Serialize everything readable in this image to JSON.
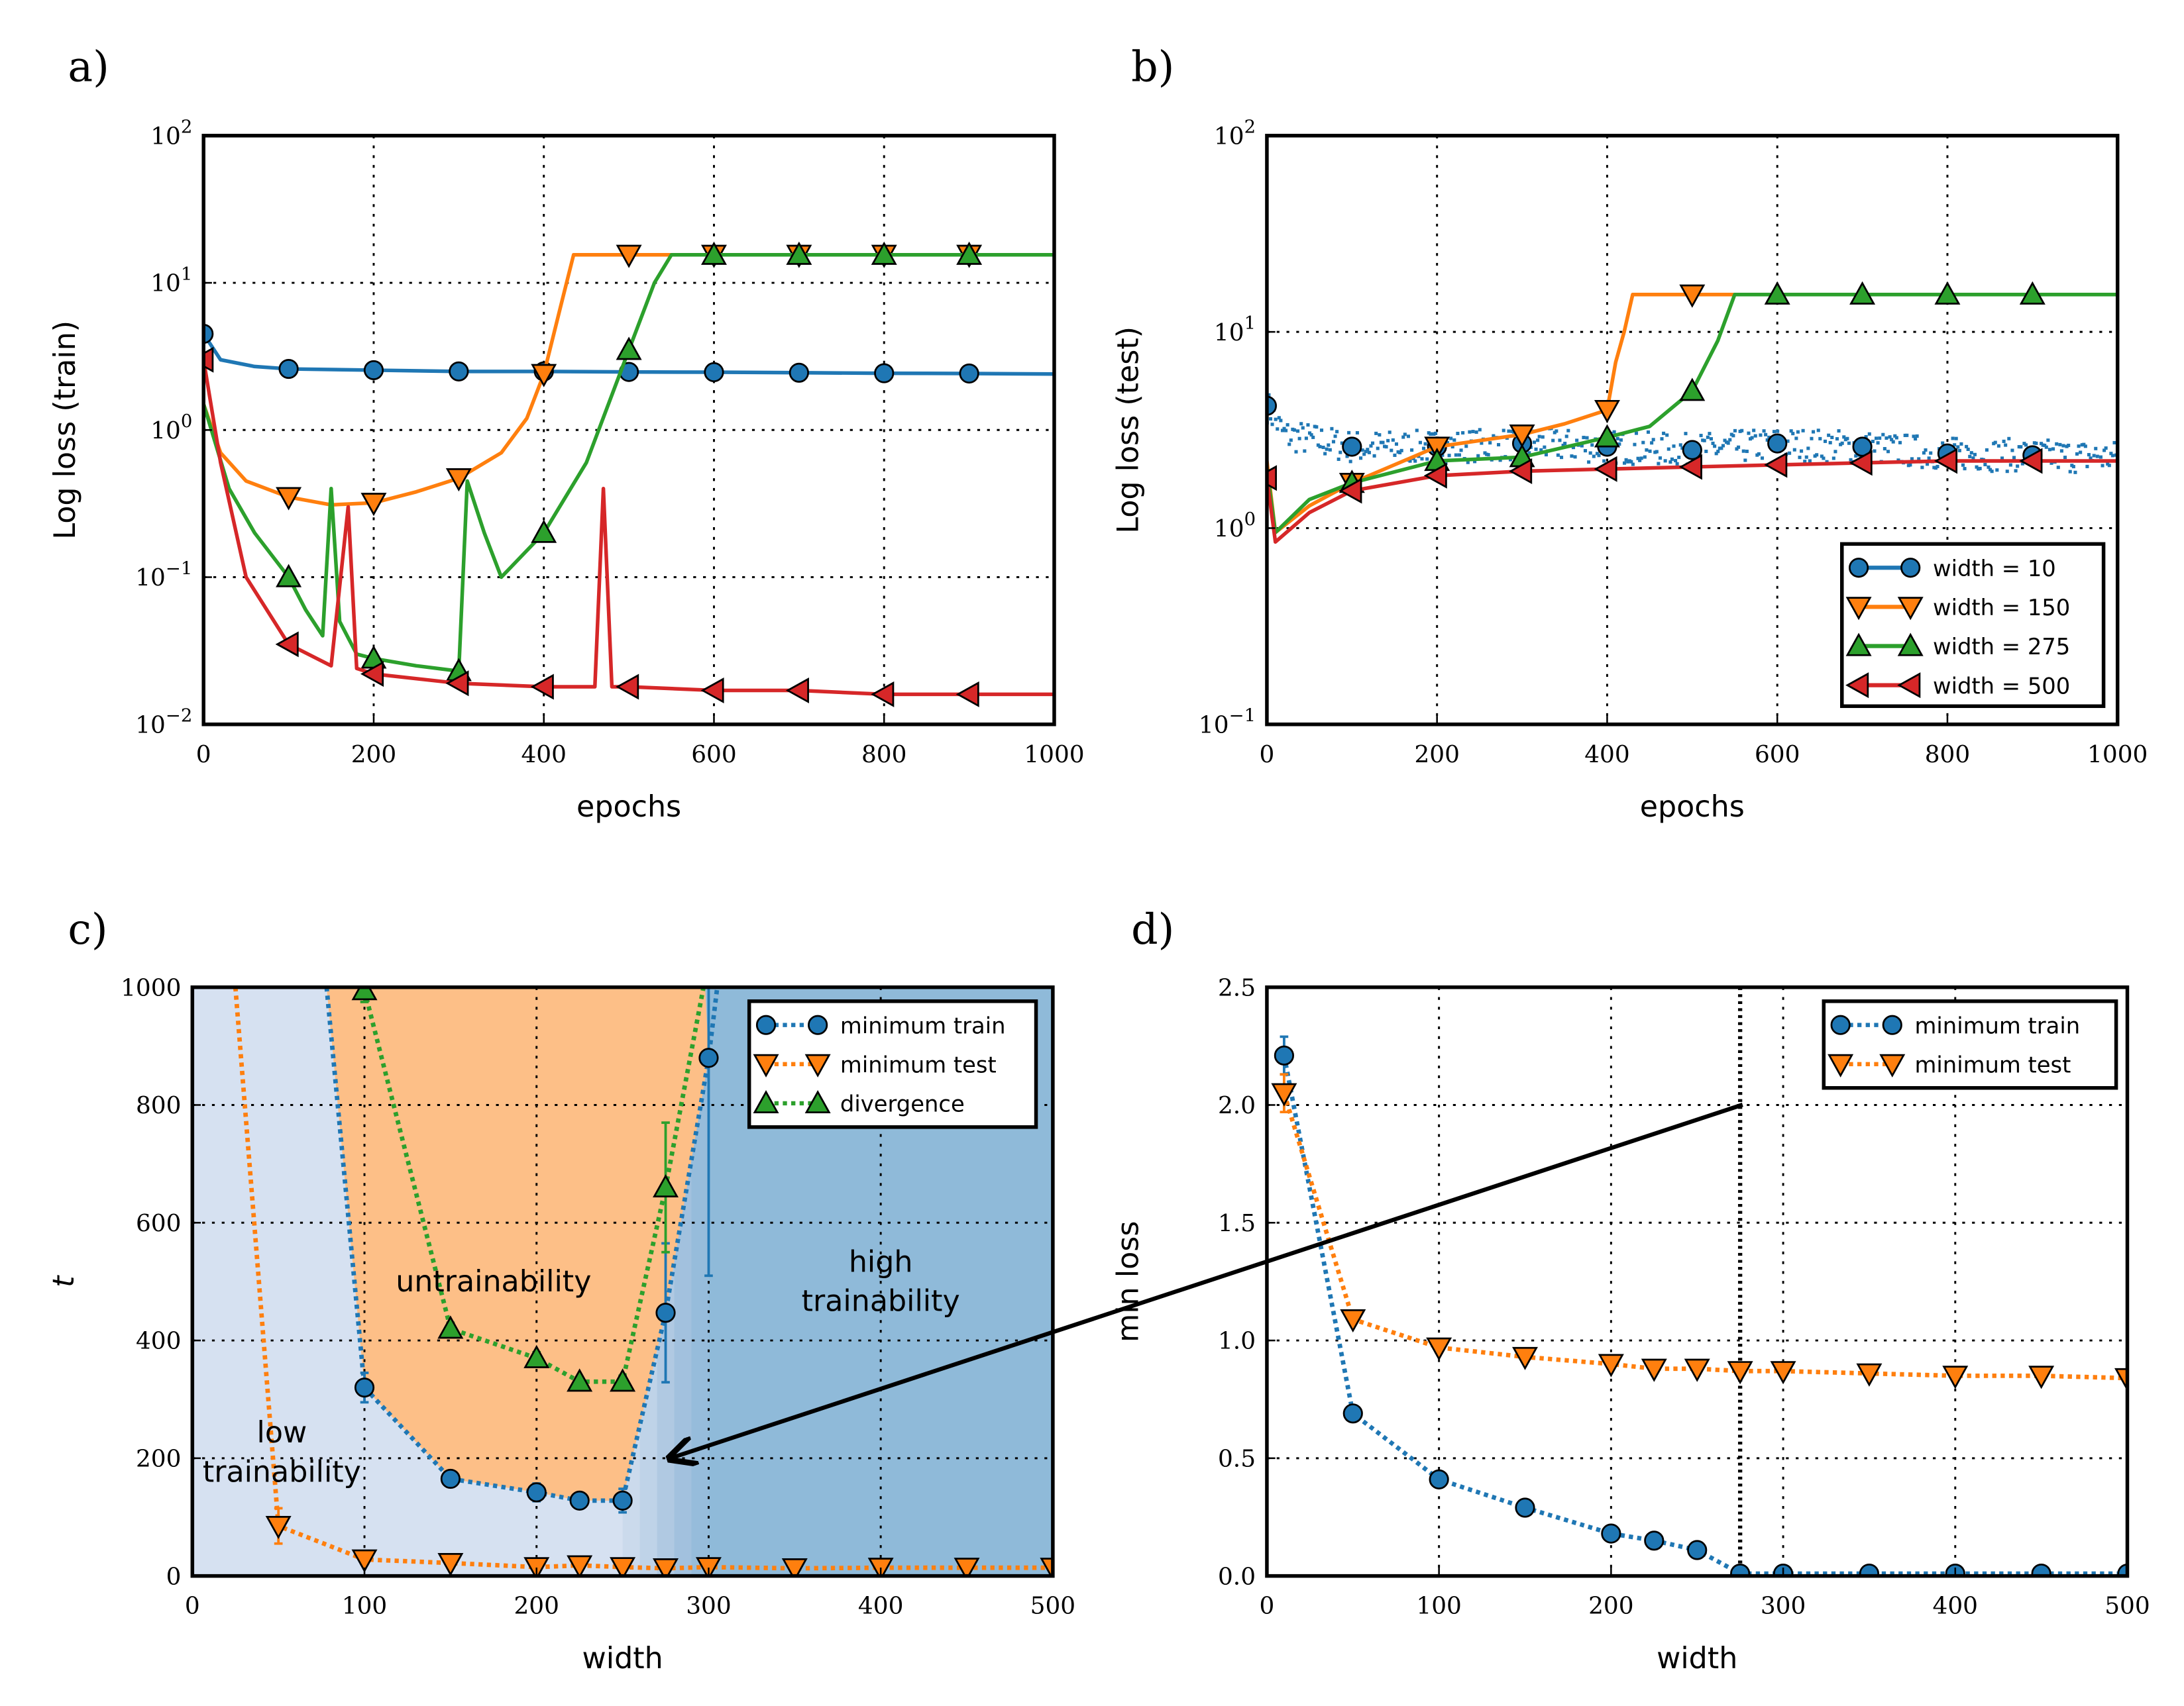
{
  "colors": {
    "blue": "#1f77b4",
    "orange": "#ff7f0e",
    "green": "#2ca02c",
    "red": "#d62728",
    "region_low": "#d6e1f1",
    "region_untrainable": "#fdbf87",
    "region_high": "#8fbad9"
  },
  "chart_data": [
    {
      "panel": "a)",
      "type": "line",
      "xlabel": "epochs",
      "ylabel": "Log loss (train)",
      "xlim": [
        0,
        1000
      ],
      "ylim": [
        0.01,
        100
      ],
      "yscale": "log",
      "grid": true,
      "xticks": [
        0,
        200,
        400,
        600,
        800,
        1000
      ],
      "xticklabels": [
        "0",
        "200",
        "400",
        "600",
        "800",
        "1000"
      ],
      "yticks": [
        0.01,
        0.1,
        1,
        10,
        100
      ],
      "yticklabels": [
        "10^−2",
        "10^−1",
        "10^0",
        "10^1",
        "10^2"
      ],
      "series": [
        {
          "name": "width = 10",
          "color": "#1f77b4",
          "marker": "o",
          "x": [
            0,
            20,
            60,
            100,
            200,
            300,
            400,
            500,
            600,
            700,
            800,
            900,
            1000
          ],
          "y": [
            4.5,
            3.0,
            2.7,
            2.6,
            2.55,
            2.5,
            2.5,
            2.48,
            2.47,
            2.45,
            2.43,
            2.42,
            2.4
          ]
        },
        {
          "name": "width = 150",
          "color": "#ff7f0e",
          "marker": "v",
          "x": [
            0,
            20,
            50,
            100,
            150,
            200,
            250,
            300,
            350,
            380,
            400,
            420,
            435,
            500,
            600,
            700,
            800,
            900,
            1000
          ],
          "y": [
            1.5,
            0.7,
            0.45,
            0.35,
            0.31,
            0.32,
            0.38,
            0.47,
            0.7,
            1.2,
            2.4,
            7,
            15.5,
            15.5,
            15.5,
            15.5,
            15.5,
            15.5,
            15.5
          ]
        },
        {
          "name": "width = 275",
          "color": "#2ca02c",
          "marker": "^",
          "x": [
            0,
            30,
            60,
            100,
            120,
            140,
            150,
            160,
            180,
            200,
            250,
            300,
            310,
            330,
            350,
            400,
            450,
            500,
            530,
            550,
            600,
            700,
            800,
            900,
            1000
          ],
          "y": [
            1.5,
            0.4,
            0.2,
            0.1,
            0.06,
            0.04,
            0.4,
            0.05,
            0.03,
            0.028,
            0.025,
            0.023,
            0.45,
            0.2,
            0.1,
            0.2,
            0.6,
            3.5,
            10,
            15.5,
            15.5,
            15.5,
            15.5,
            15.5,
            15.5
          ]
        },
        {
          "name": "width = 500",
          "color": "#d62728",
          "marker": "<",
          "x": [
            0,
            20,
            50,
            100,
            150,
            170,
            180,
            200,
            300,
            400,
            460,
            470,
            480,
            500,
            600,
            700,
            800,
            900,
            1000
          ],
          "y": [
            3.0,
            0.6,
            0.1,
            0.035,
            0.025,
            0.3,
            0.024,
            0.022,
            0.019,
            0.018,
            0.018,
            0.4,
            0.018,
            0.018,
            0.017,
            0.017,
            0.016,
            0.016,
            0.016
          ]
        }
      ]
    },
    {
      "panel": "b)",
      "type": "line",
      "xlabel": "epochs",
      "ylabel": "Log loss (test)",
      "xlim": [
        0,
        1000
      ],
      "ylim": [
        0.1,
        100
      ],
      "yscale": "log",
      "grid": true,
      "legend": "lower-right",
      "xticks": [
        0,
        200,
        400,
        600,
        800,
        1000
      ],
      "xticklabels": [
        "0",
        "200",
        "400",
        "600",
        "800",
        "1000"
      ],
      "yticks": [
        0.1,
        1,
        10,
        100
      ],
      "yticklabels": [
        "10^−1",
        "10^0",
        "10^1",
        "10^2"
      ],
      "series": [
        {
          "name": "width = 10",
          "color": "#1f77b4",
          "marker": "o",
          "noisy": true,
          "x": [
            0,
            20,
            100,
            200,
            300,
            400,
            500,
            600,
            700,
            800,
            900,
            1000
          ],
          "y": [
            4.2,
            3.0,
            2.6,
            2.6,
            2.7,
            2.6,
            2.5,
            2.7,
            2.6,
            2.4,
            2.35,
            2.3
          ]
        },
        {
          "name": "width = 150",
          "color": "#ff7f0e",
          "marker": "v",
          "x": [
            0,
            10,
            50,
            100,
            200,
            300,
            350,
            400,
            410,
            420,
            430,
            500,
            550
          ],
          "y": [
            2.2,
            0.95,
            1.3,
            1.7,
            2.6,
            3.0,
            3.4,
            4.0,
            7,
            10,
            15.5,
            15.5,
            15.5
          ]
        },
        {
          "name": "width = 275",
          "color": "#2ca02c",
          "marker": "^",
          "x": [
            0,
            10,
            50,
            100,
            200,
            300,
            400,
            450,
            500,
            530,
            550,
            600,
            700,
            800,
            900,
            1000
          ],
          "y": [
            2.0,
            0.95,
            1.4,
            1.7,
            2.2,
            2.3,
            2.9,
            3.3,
            5.0,
            9,
            15.5,
            15.5,
            15.5,
            15.5,
            15.5,
            15.5
          ]
        },
        {
          "name": "width = 500",
          "color": "#d62728",
          "marker": "<",
          "x": [
            0,
            10,
            50,
            100,
            200,
            300,
            400,
            500,
            600,
            700,
            800,
            900,
            1000
          ],
          "y": [
            1.8,
            0.85,
            1.2,
            1.55,
            1.85,
            1.95,
            2.0,
            2.05,
            2.1,
            2.15,
            2.2,
            2.2,
            2.2
          ]
        }
      ]
    },
    {
      "panel": "c)",
      "type": "line",
      "xlabel": "width",
      "ylabel": "t",
      "xlim": [
        0,
        500
      ],
      "ylim": [
        0,
        1000
      ],
      "grid": true,
      "legend": "upper-right",
      "xticks": [
        0,
        100,
        200,
        300,
        400,
        500
      ],
      "xticklabels": [
        "0",
        "100",
        "200",
        "300",
        "400",
        "500"
      ],
      "yticks": [
        0,
        200,
        400,
        600,
        800,
        1000
      ],
      "yticklabels": [
        "0",
        "200",
        "400",
        "600",
        "800",
        "1000"
      ],
      "regions": [
        {
          "label_lines": [
            "low",
            "trainability"
          ],
          "x": 52,
          "y": 210
        },
        {
          "label_lines": [
            "untrainability"
          ],
          "x": 175,
          "y": 500
        },
        {
          "label_lines": [
            "high",
            "trainability"
          ],
          "x": 400,
          "y": 500
        }
      ],
      "series": [
        {
          "name": "minimum train",
          "color": "#1f77b4",
          "marker": "o",
          "x": [
            100,
            150,
            200,
            225,
            250,
            275,
            300
          ],
          "y": [
            320,
            165,
            142,
            128,
            128,
            447,
            880
          ],
          "yerr": [
            25,
            8,
            15,
            10,
            20,
            118,
            370
          ],
          "line_x": [
            78,
            100,
            150,
            200,
            225,
            250,
            275,
            300,
            305
          ],
          "line_y": [
            1000,
            320,
            165,
            142,
            128,
            128,
            447,
            880,
            1000
          ]
        },
        {
          "name": "minimum test",
          "color": "#ff7f0e",
          "marker": "v",
          "x": [
            50,
            100,
            150,
            200,
            225,
            250,
            275,
            300,
            350,
            400,
            450,
            500
          ],
          "y": [
            85,
            28,
            22,
            15,
            18,
            15,
            13,
            15,
            13,
            14,
            14,
            14
          ],
          "yerr": [
            30,
            8,
            5,
            4,
            4,
            4,
            3,
            3,
            3,
            3,
            3,
            3
          ],
          "line_x": [
            25,
            50,
            100,
            150,
            200,
            225,
            250,
            275,
            300,
            350,
            400,
            450,
            500
          ],
          "line_y": [
            1000,
            85,
            28,
            22,
            15,
            18,
            15,
            13,
            15,
            13,
            14,
            14,
            14
          ]
        },
        {
          "name": "divergence",
          "color": "#2ca02c",
          "marker": "^",
          "x": [
            100,
            150,
            200,
            225,
            250,
            275
          ],
          "y": [
            995,
            420,
            370,
            330,
            330,
            660
          ],
          "yerr": [
            20,
            10,
            10,
            8,
            10,
            110
          ],
          "line_x": [
            100,
            150,
            200,
            225,
            250,
            275,
            297
          ],
          "line_y": [
            995,
            420,
            370,
            330,
            330,
            660,
            1000
          ]
        }
      ]
    },
    {
      "panel": "d)",
      "type": "line",
      "xlabel": "width",
      "ylabel": "min loss",
      "xlim": [
        0,
        500
      ],
      "ylim": [
        0,
        2.5
      ],
      "grid": true,
      "legend": "upper-right",
      "vline": 275,
      "xticks": [
        0,
        100,
        200,
        300,
        400,
        500
      ],
      "xticklabels": [
        "0",
        "100",
        "200",
        "300",
        "400",
        "500"
      ],
      "yticks": [
        0,
        0.5,
        1,
        1.5,
        2,
        2.5
      ],
      "yticklabels": [
        "0.0",
        "0.5",
        "1.0",
        "1.5",
        "2.0",
        "2.5"
      ],
      "series": [
        {
          "name": "minimum train",
          "color": "#1f77b4",
          "marker": "o",
          "x": [
            10,
            50,
            100,
            150,
            200,
            225,
            250,
            275,
            300,
            350,
            400,
            450,
            500
          ],
          "y": [
            2.21,
            0.69,
            0.41,
            0.29,
            0.18,
            0.15,
            0.11,
            0.01,
            0.01,
            0.01,
            0.01,
            0.01,
            0.01
          ],
          "yerr": [
            0.08,
            0.02,
            0.02,
            0.01,
            0.01,
            0.01,
            0.01,
            0,
            0,
            0,
            0,
            0,
            0
          ]
        },
        {
          "name": "minimum test",
          "color": "#ff7f0e",
          "marker": "v",
          "x": [
            10,
            50,
            100,
            150,
            200,
            225,
            250,
            275,
            300,
            350,
            400,
            450,
            500
          ],
          "y": [
            2.05,
            1.09,
            0.97,
            0.93,
            0.9,
            0.88,
            0.88,
            0.87,
            0.87,
            0.86,
            0.85,
            0.85,
            0.84
          ],
          "yerr": [
            0.08,
            0.02,
            0.02,
            0.01,
            0.01,
            0.01,
            0.01,
            0.01,
            0.01,
            0.01,
            0.01,
            0.01,
            0.01
          ]
        }
      ]
    }
  ]
}
